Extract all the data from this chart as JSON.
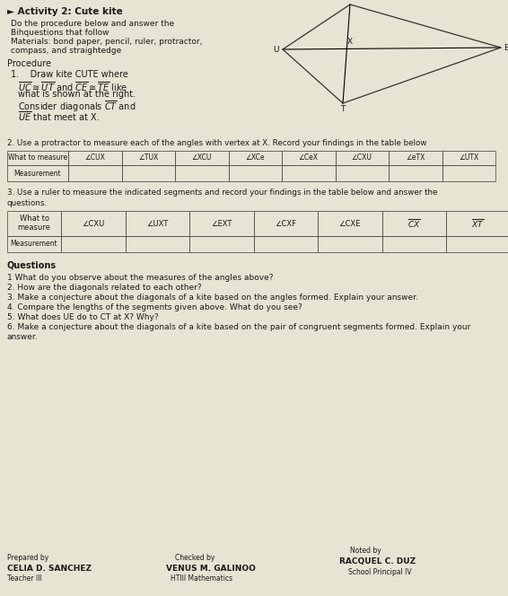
{
  "title": "► Activity 2: Cute kite",
  "line2": "Do the procedure below and answer the",
  "line3": "Bihquestions that follow",
  "line4": "Materials: bond paper, pencil, ruler, protractor,",
  "line5": "compass, and straightedge",
  "procedure_label": "Procedure",
  "proc1a": "1.    Draw kite CUTE where",
  "proc1b_plain": " and  like",
  "proc1c": "what is shown at the right.",
  "proc1d_plain": "Consider diagonals  and",
  "proc1e_plain": " that meet at X.",
  "step2": "2. Use a protractor to measure each of the angles with vertex at X. Record your findings in the table below",
  "table1_col0": "What to measure",
  "table1_row0": [
    "∠CUX",
    "∠TUX",
    "∠XCU",
    "∠XCe",
    "∠CeX",
    "∠CXU",
    "∠eTX",
    "∠UTX"
  ],
  "table1_row1_label": "Measurement",
  "step3a": "3. Use a ruler to measure the indicated segments and record your findings in the table below and answer the",
  "step3b": "questions.",
  "table2_col0a": "What to",
  "table2_col0b": "measure",
  "table2_col0c": "Measurement",
  "table2_row0": [
    "∠CXU",
    "∠UXT",
    "∠EXT",
    "∠CXF",
    "∠CXE",
    "CX",
    "XT"
  ],
  "questions_title": "Questions",
  "q1": "1 What do you observe about the measures of the angles above?",
  "q2": "2. How are the diagonals related to each other?",
  "q3": "3. Make a conjecture about the diagonals of a kite based on the angles formed. Explain your answer.",
  "q4": "4. Compare the lengths of the segments given above. What do you see?",
  "q5": "5. What does UE do to CT at X? Why?",
  "q6a": "6. Make a conjecture about the diagonals of a kite based on the pair of congruent segments formed. Explain your",
  "q6b": "answer.",
  "prep_label": "Prepared by",
  "prep_name": "CELIA D. SANCHEZ",
  "prep_title": "Teacher III",
  "check_label": "Checked by",
  "check_name": "VENUS M. GALINOO",
  "check_title": "HTIII Mathematics",
  "noted_label": "Noted by",
  "noted_name": "RACQUEL C. DUZ",
  "noted_title": "School Principal IV",
  "bg": "#e8e4d4"
}
